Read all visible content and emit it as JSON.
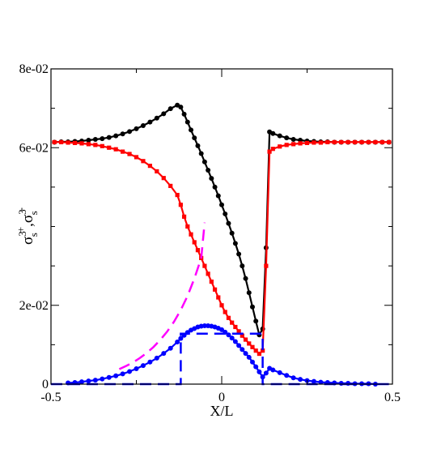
{
  "chart_data": {
    "type": "line",
    "xlabel": "X/L",
    "ylabel": {
      "parts": [
        {
          "text": "σ",
          "sup": "3",
          "sub": "s",
          "mark": "+"
        },
        {
          "text": ",σ",
          "sup": "3",
          "sub": "s",
          "mark": "-"
        }
      ]
    },
    "xlim": [
      -0.5,
      0.5
    ],
    "ylim": [
      0,
      0.08
    ],
    "x_ticks": [
      {
        "value": -0.5,
        "label": "-0.5"
      },
      {
        "value": 0,
        "label": "0"
      },
      {
        "value": 0.5,
        "label": "0.5"
      }
    ],
    "y_ticks": [
      {
        "value": 0,
        "label": "0"
      },
      {
        "value": 0.02,
        "label": "2e-02"
      },
      {
        "value": 0.06,
        "label": "6e-02"
      },
      {
        "value": 0.08,
        "label": "8e-02"
      }
    ],
    "x_minor_ticks": [
      -0.25,
      0.25
    ],
    "y_minor_ticks": [
      0.01,
      0.03,
      0.04,
      0.05,
      0.07
    ],
    "grid": false,
    "legend": "none",
    "series": [
      {
        "color": "#000000",
        "line": "solid",
        "markers": "circle",
        "x": [
          -0.49,
          -0.47,
          -0.45,
          -0.43,
          -0.41,
          -0.39,
          -0.37,
          -0.35,
          -0.33,
          -0.31,
          -0.29,
          -0.27,
          -0.25,
          -0.23,
          -0.21,
          -0.19,
          -0.17,
          -0.15,
          -0.13,
          -0.12,
          -0.11,
          -0.1,
          -0.09,
          -0.08,
          -0.07,
          -0.06,
          -0.05,
          -0.04,
          -0.03,
          -0.02,
          -0.01,
          0.0,
          0.01,
          0.02,
          0.03,
          0.04,
          0.05,
          0.06,
          0.07,
          0.08,
          0.09,
          0.1,
          0.11,
          0.12,
          0.13,
          0.14,
          0.15,
          0.17,
          0.19,
          0.21,
          0.23,
          0.25,
          0.27,
          0.29,
          0.31,
          0.33,
          0.35,
          0.37,
          0.39,
          0.41,
          0.43,
          0.45,
          0.47,
          0.49
        ],
        "y": [
          0.0614,
          0.0615,
          0.0615,
          0.0616,
          0.0617,
          0.0619,
          0.0621,
          0.0623,
          0.0626,
          0.063,
          0.0635,
          0.0641,
          0.0648,
          0.0656,
          0.0665,
          0.0675,
          0.0686,
          0.0699,
          0.0708,
          0.0703,
          0.0685,
          0.0665,
          0.0645,
          0.0625,
          0.0605,
          0.0585,
          0.0564,
          0.0543,
          0.0522,
          0.05,
          0.0478,
          0.0455,
          0.0432,
          0.0408,
          0.0383,
          0.0357,
          0.033,
          0.03,
          0.0268,
          0.0232,
          0.0196,
          0.016,
          0.0125,
          0.014,
          0.0346,
          0.064,
          0.0636,
          0.063,
          0.0625,
          0.0621,
          0.0619,
          0.0617,
          0.0616,
          0.0615,
          0.0615,
          0.0614,
          0.0614,
          0.0614,
          0.0614,
          0.0614,
          0.0614,
          0.0614,
          0.0614,
          0.0614
        ]
      },
      {
        "color": "#ff0000",
        "line": "solid",
        "markers": "square",
        "x": [
          -0.49,
          -0.47,
          -0.45,
          -0.43,
          -0.41,
          -0.39,
          -0.37,
          -0.35,
          -0.33,
          -0.31,
          -0.29,
          -0.27,
          -0.25,
          -0.23,
          -0.21,
          -0.19,
          -0.17,
          -0.15,
          -0.13,
          -0.12,
          -0.11,
          -0.1,
          -0.09,
          -0.08,
          -0.07,
          -0.06,
          -0.05,
          -0.04,
          -0.03,
          -0.02,
          -0.01,
          0.0,
          0.01,
          0.02,
          0.03,
          0.04,
          0.05,
          0.06,
          0.07,
          0.08,
          0.09,
          0.1,
          0.11,
          0.12,
          0.13,
          0.14,
          0.15,
          0.17,
          0.19,
          0.21,
          0.23,
          0.25,
          0.27,
          0.29,
          0.31,
          0.33,
          0.35,
          0.37,
          0.39,
          0.41,
          0.43,
          0.45,
          0.47,
          0.49
        ],
        "y": [
          0.0614,
          0.0614,
          0.0613,
          0.0612,
          0.0611,
          0.0609,
          0.0607,
          0.0604,
          0.06,
          0.0596,
          0.059,
          0.0584,
          0.0576,
          0.0566,
          0.0554,
          0.054,
          0.0523,
          0.0503,
          0.048,
          0.0455,
          0.0425,
          0.04,
          0.038,
          0.036,
          0.034,
          0.032,
          0.03,
          0.028,
          0.026,
          0.024,
          0.022,
          0.02,
          0.0183,
          0.0168,
          0.0156,
          0.0145,
          0.0134,
          0.0123,
          0.0113,
          0.0103,
          0.0094,
          0.0085,
          0.0077,
          0.0085,
          0.03,
          0.059,
          0.0597,
          0.0603,
          0.0607,
          0.0609,
          0.0611,
          0.0612,
          0.0613,
          0.0613,
          0.0614,
          0.0614,
          0.0614,
          0.0614,
          0.0614,
          0.0614,
          0.0614,
          0.0614,
          0.0614,
          0.0614
        ]
      },
      {
        "color": "#0000ff",
        "line": "solid",
        "markers": "circle",
        "x": [
          -0.45,
          -0.43,
          -0.41,
          -0.39,
          -0.37,
          -0.35,
          -0.33,
          -0.31,
          -0.29,
          -0.27,
          -0.25,
          -0.23,
          -0.21,
          -0.19,
          -0.17,
          -0.15,
          -0.13,
          -0.12,
          -0.11,
          -0.1,
          -0.09,
          -0.08,
          -0.07,
          -0.06,
          -0.05,
          -0.04,
          -0.03,
          -0.02,
          -0.01,
          0.0,
          0.01,
          0.02,
          0.03,
          0.04,
          0.05,
          0.06,
          0.07,
          0.08,
          0.09,
          0.1,
          0.11,
          0.12,
          0.13,
          0.14,
          0.15,
          0.17,
          0.19,
          0.21,
          0.23,
          0.25,
          0.27,
          0.29,
          0.31,
          0.33,
          0.35,
          0.37,
          0.39,
          0.41,
          0.43,
          0.45
        ],
        "y": [
          0.0003,
          0.0004,
          0.0006,
          0.0008,
          0.001,
          0.0013,
          0.0017,
          0.0021,
          0.0026,
          0.0032,
          0.0039,
          0.0047,
          0.0056,
          0.0066,
          0.0078,
          0.0091,
          0.0107,
          0.0116,
          0.0124,
          0.0131,
          0.0137,
          0.0141,
          0.0145,
          0.0147,
          0.0148,
          0.0148,
          0.0147,
          0.0145,
          0.0142,
          0.0138,
          0.0132,
          0.0125,
          0.0117,
          0.0108,
          0.0098,
          0.0088,
          0.0078,
          0.0068,
          0.0056,
          0.0044,
          0.0031,
          0.0018,
          0.0028,
          0.004,
          0.0036,
          0.0029,
          0.0022,
          0.0016,
          0.0012,
          0.0009,
          0.0007,
          0.0005,
          0.0004,
          0.0003,
          0.0002,
          0.0002,
          0.0001,
          0.0001,
          0.0001,
          0.0
        ]
      },
      {
        "color": "#ff00ff",
        "line": "dashed",
        "markers": "none",
        "x": [
          -0.3,
          -0.28,
          -0.26,
          -0.24,
          -0.22,
          -0.2,
          -0.18,
          -0.16,
          -0.14,
          -0.12,
          -0.1,
          -0.08,
          -0.06,
          -0.05
        ],
        "y": [
          0.0038,
          0.0046,
          0.0055,
          0.0066,
          0.0079,
          0.0094,
          0.0112,
          0.0133,
          0.0158,
          0.0188,
          0.0224,
          0.0268,
          0.032,
          0.041
        ]
      },
      {
        "color": "#0000ff",
        "line": "dashed",
        "markers": "none",
        "x": [
          -0.5,
          -0.12,
          -0.12,
          0.12,
          0.12,
          0.5
        ],
        "y": [
          0,
          0,
          0.0128,
          0.0128,
          0,
          0
        ]
      }
    ]
  }
}
